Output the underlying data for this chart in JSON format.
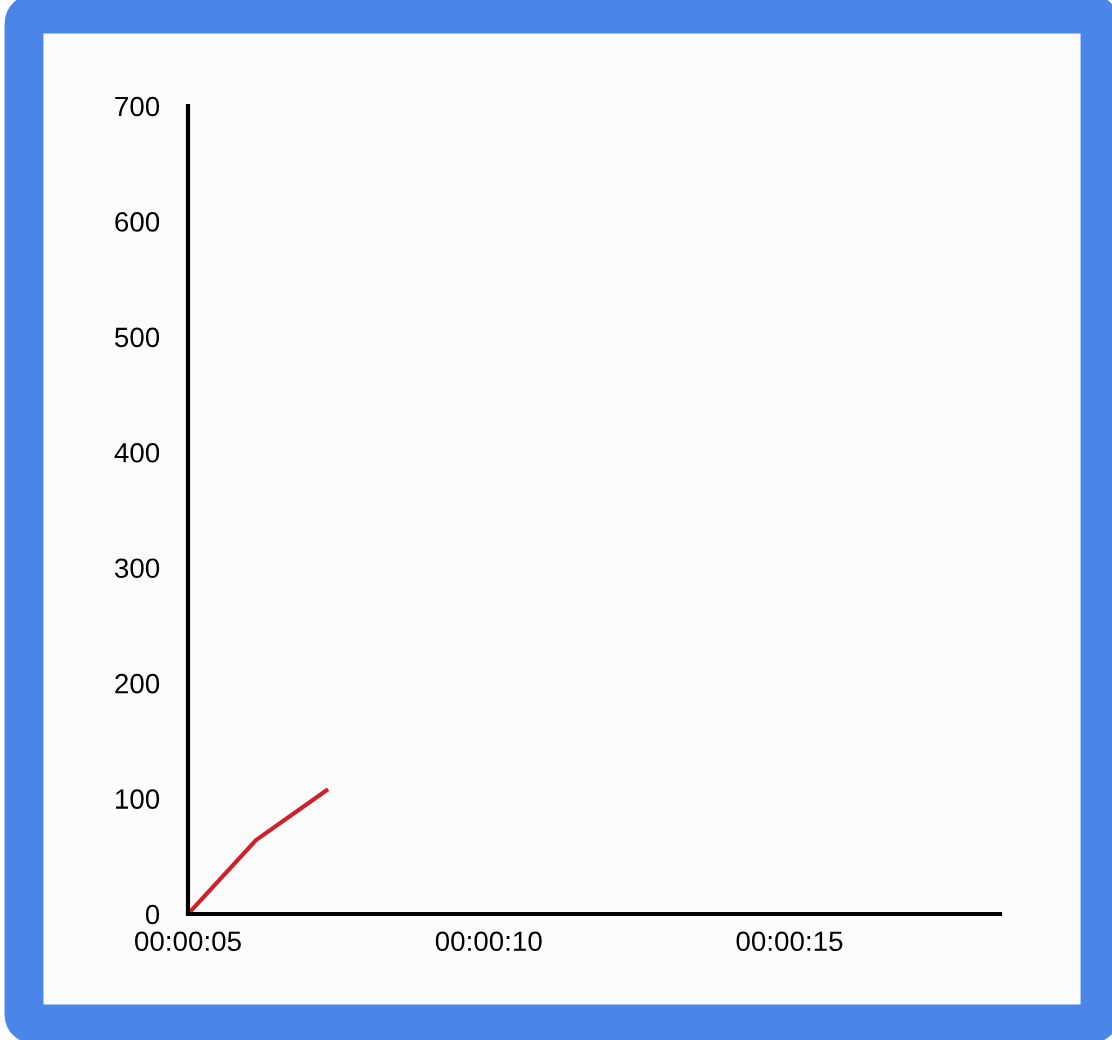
{
  "chart_data": {
    "type": "line",
    "x": [
      0.0013889,
      0.0017028,
      0.0020278
    ],
    "series": [
      {
        "color": "#d0202a",
        "values": [
          0,
          64,
          107
        ]
      }
    ],
    "xlim": [
      0.0013889,
      0.0051389
    ],
    "xticks": [
      {
        "value": 0.0013889,
        "label": "00:00:05"
      },
      {
        "value": 0.0027778,
        "label": "00:00:10"
      },
      {
        "value": 0.0041667,
        "label": "00:00:15"
      }
    ],
    "ylim": [
      0,
      700
    ],
    "yticks": [
      0,
      100,
      200,
      300,
      400,
      500,
      600,
      700
    ],
    "grid": false,
    "legend": false,
    "marker": "none",
    "line_style": "solid"
  }
}
